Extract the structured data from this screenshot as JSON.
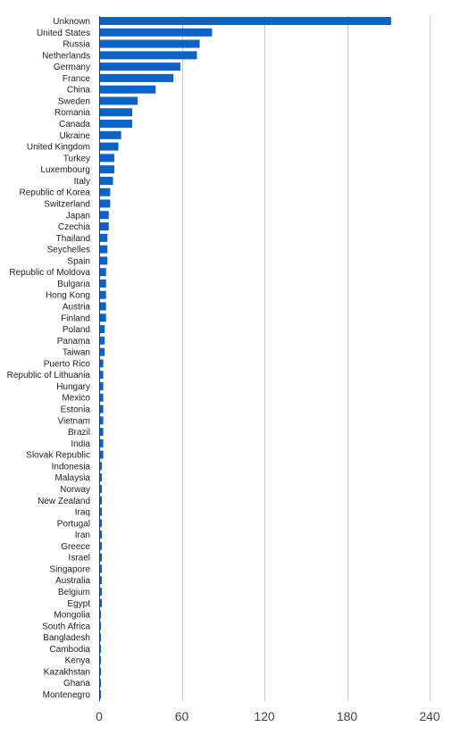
{
  "chart_data": {
    "type": "bar",
    "orientation": "horizontal",
    "title": "",
    "xlabel": "",
    "ylabel": "",
    "xlim": [
      0,
      240
    ],
    "xticks": [
      0,
      60,
      120,
      180,
      240
    ],
    "grid": true,
    "bar_color": "#0b62c9",
    "categories": [
      "Unknown",
      "United States",
      "Russia",
      "Netherlands",
      "Germany",
      "France",
      "China",
      "Sweden",
      "Romania",
      "Canada",
      "Ukraine",
      "United Kingdom",
      "Turkey",
      "Luxembourg",
      "Italy",
      "Republic of Korea",
      "Switzerland",
      "Japan",
      "Czechia",
      "Thailand",
      "Seychelles",
      "Spain",
      "Republic of Moldova",
      "Bulgaria",
      "Hong Kong",
      "Austria",
      "Finland",
      "Poland",
      "Panama",
      "Taiwan",
      "Puerto Rico",
      "Republic of Lithuania",
      "Hungary",
      "Mexico",
      "Estonia",
      "Vietnam",
      "Brazil",
      "India",
      "Slovak Republic",
      "Indonesia",
      "Malaysia",
      "Norway",
      "New Zealand",
      "Iraq",
      "Portugal",
      "Iran",
      "Greece",
      "Israel",
      "Singapore",
      "Australia",
      "Belgium",
      "Egypt",
      "Mongolia",
      "South Africa",
      "Bangladesh",
      "Cambodia",
      "Kenya",
      "Kazakhstan",
      "Ghana",
      "Montenegro"
    ],
    "values": [
      212,
      82,
      73,
      71,
      59,
      54,
      41,
      28,
      24,
      24,
      16,
      14,
      11,
      11,
      10,
      8,
      8,
      7,
      7,
      6,
      6,
      6,
      5,
      5,
      5,
      5,
      5,
      4,
      4,
      4,
      3,
      3,
      3,
      3,
      3,
      3,
      3,
      3,
      3,
      2,
      2,
      2,
      2,
      2,
      2,
      2,
      2,
      2,
      2,
      2,
      2,
      2,
      1,
      1,
      1,
      1,
      1,
      1,
      1,
      1
    ]
  }
}
